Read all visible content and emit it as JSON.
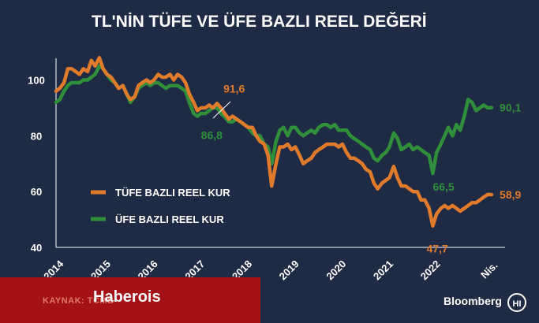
{
  "colors": {
    "background": "#1f2a44",
    "axis": "#ffffff",
    "tufe": "#e07b2c",
    "ufe": "#2f8f3a",
    "banner": "#a41217"
  },
  "chart_data": {
    "type": "line",
    "title": "TL'NİN TÜFE VE ÜFE BAZLI REEL DEĞERİ",
    "xlabel": "",
    "ylabel": "",
    "ylim": [
      40,
      112
    ],
    "xlim": [
      2014.0,
      2023.4
    ],
    "y_ticks": [
      40,
      60,
      80,
      100
    ],
    "x_tick_labels": [
      {
        "x": 2014,
        "label": "2014"
      },
      {
        "x": 2015,
        "label": "2015"
      },
      {
        "x": 2016,
        "label": "2016"
      },
      {
        "x": 2017,
        "label": "2017"
      },
      {
        "x": 2018,
        "label": "2018"
      },
      {
        "x": 2019,
        "label": "2019"
      },
      {
        "x": 2020,
        "label": "2020"
      },
      {
        "x": 2021,
        "label": "2021"
      },
      {
        "x": 2022,
        "label": "2022"
      },
      {
        "x": 2023.25,
        "label": "Nis."
      }
    ],
    "grid": false,
    "legend": "center-left",
    "series": [
      {
        "name": "TÜFE BAZLI REEL KUR",
        "color": "#e07b2c",
        "points": [
          [
            2014.0,
            96
          ],
          [
            2014.08,
            97
          ],
          [
            2014.17,
            99
          ],
          [
            2014.25,
            104
          ],
          [
            2014.33,
            104
          ],
          [
            2014.42,
            103
          ],
          [
            2014.5,
            102
          ],
          [
            2014.58,
            104
          ],
          [
            2014.67,
            103
          ],
          [
            2014.75,
            107
          ],
          [
            2014.83,
            105
          ],
          [
            2014.92,
            108
          ],
          [
            2015.0,
            104
          ],
          [
            2015.08,
            102
          ],
          [
            2015.17,
            101
          ],
          [
            2015.25,
            99
          ],
          [
            2015.33,
            97
          ],
          [
            2015.42,
            98
          ],
          [
            2015.5,
            95
          ],
          [
            2015.58,
            93
          ],
          [
            2015.67,
            94
          ],
          [
            2015.75,
            98
          ],
          [
            2015.83,
            99
          ],
          [
            2015.92,
            100
          ],
          [
            2016.0,
            99
          ],
          [
            2016.08,
            100
          ],
          [
            2016.17,
            102
          ],
          [
            2016.25,
            101
          ],
          [
            2016.33,
            101
          ],
          [
            2016.42,
            102
          ],
          [
            2016.5,
            100
          ],
          [
            2016.58,
            102
          ],
          [
            2016.67,
            101
          ],
          [
            2016.75,
            99
          ],
          [
            2016.83,
            95
          ],
          [
            2016.92,
            92
          ],
          [
            2017.0,
            89
          ],
          [
            2017.08,
            90
          ],
          [
            2017.17,
            90
          ],
          [
            2017.25,
            91
          ],
          [
            2017.33,
            90
          ],
          [
            2017.42,
            91.6
          ],
          [
            2017.5,
            90
          ],
          [
            2017.58,
            88
          ],
          [
            2017.67,
            86
          ],
          [
            2017.75,
            87
          ],
          [
            2017.83,
            86
          ],
          [
            2017.92,
            85
          ],
          [
            2018.0,
            84
          ],
          [
            2018.08,
            83
          ],
          [
            2018.17,
            83
          ],
          [
            2018.25,
            80
          ],
          [
            2018.33,
            78
          ],
          [
            2018.42,
            77
          ],
          [
            2018.5,
            73
          ],
          [
            2018.58,
            62
          ],
          [
            2018.67,
            70
          ],
          [
            2018.75,
            76
          ],
          [
            2018.83,
            76
          ],
          [
            2018.92,
            77
          ],
          [
            2019.0,
            75
          ],
          [
            2019.08,
            76
          ],
          [
            2019.17,
            73
          ],
          [
            2019.25,
            70
          ],
          [
            2019.33,
            71
          ],
          [
            2019.42,
            72
          ],
          [
            2019.5,
            74
          ],
          [
            2019.58,
            75
          ],
          [
            2019.67,
            76
          ],
          [
            2019.75,
            77
          ],
          [
            2019.83,
            77
          ],
          [
            2019.92,
            77
          ],
          [
            2020.0,
            76
          ],
          [
            2020.08,
            77
          ],
          [
            2020.17,
            74
          ],
          [
            2020.25,
            72
          ],
          [
            2020.33,
            72
          ],
          [
            2020.42,
            71
          ],
          [
            2020.5,
            70
          ],
          [
            2020.58,
            68
          ],
          [
            2020.67,
            67
          ],
          [
            2020.75,
            63
          ],
          [
            2020.83,
            61
          ],
          [
            2020.92,
            63
          ],
          [
            2021.0,
            64
          ],
          [
            2021.08,
            65
          ],
          [
            2021.17,
            69
          ],
          [
            2021.25,
            65
          ],
          [
            2021.33,
            62
          ],
          [
            2021.42,
            62
          ],
          [
            2021.5,
            61
          ],
          [
            2021.58,
            60
          ],
          [
            2021.67,
            60
          ],
          [
            2021.75,
            57
          ],
          [
            2021.83,
            57
          ],
          [
            2021.92,
            54
          ],
          [
            2022.0,
            47.7
          ],
          [
            2022.08,
            52
          ],
          [
            2022.17,
            54
          ],
          [
            2022.25,
            55
          ],
          [
            2022.33,
            54
          ],
          [
            2022.42,
            55
          ],
          [
            2022.5,
            54
          ],
          [
            2022.58,
            53
          ],
          [
            2022.67,
            54
          ],
          [
            2022.75,
            55
          ],
          [
            2022.83,
            56
          ],
          [
            2022.92,
            56
          ],
          [
            2023.0,
            57
          ],
          [
            2023.08,
            58
          ],
          [
            2023.17,
            59
          ],
          [
            2023.25,
            58.9
          ]
        ],
        "annotations": [
          {
            "x": 2017.42,
            "y": 91.6,
            "label": "91,6"
          },
          {
            "x": 2022.0,
            "y": 47.7,
            "label": "47,7"
          },
          {
            "x": 2023.25,
            "y": 58.9,
            "label": "58,9"
          }
        ]
      },
      {
        "name": "ÜFE BAZLI REEL KUR",
        "color": "#2f8f3a",
        "points": [
          [
            2014.0,
            92
          ],
          [
            2014.08,
            93
          ],
          [
            2014.17,
            96
          ],
          [
            2014.25,
            98
          ],
          [
            2014.33,
            99
          ],
          [
            2014.42,
            99
          ],
          [
            2014.5,
            99
          ],
          [
            2014.58,
            100
          ],
          [
            2014.67,
            100
          ],
          [
            2014.75,
            101
          ],
          [
            2014.83,
            102
          ],
          [
            2014.92,
            105
          ],
          [
            2015.0,
            104
          ],
          [
            2015.08,
            102
          ],
          [
            2015.17,
            100
          ],
          [
            2015.25,
            99
          ],
          [
            2015.33,
            97
          ],
          [
            2015.42,
            98
          ],
          [
            2015.5,
            95
          ],
          [
            2015.58,
            92
          ],
          [
            2015.67,
            94
          ],
          [
            2015.75,
            97
          ],
          [
            2015.83,
            98
          ],
          [
            2015.92,
            99
          ],
          [
            2016.0,
            98
          ],
          [
            2016.08,
            99
          ],
          [
            2016.17,
            99
          ],
          [
            2016.25,
            98
          ],
          [
            2016.33,
            97
          ],
          [
            2016.42,
            98
          ],
          [
            2016.5,
            98
          ],
          [
            2016.58,
            98
          ],
          [
            2016.67,
            97
          ],
          [
            2016.75,
            96
          ],
          [
            2016.83,
            92
          ],
          [
            2016.92,
            88
          ],
          [
            2017.0,
            87
          ],
          [
            2017.08,
            88
          ],
          [
            2017.17,
            88
          ],
          [
            2017.25,
            89
          ],
          [
            2017.33,
            90
          ],
          [
            2017.42,
            90
          ],
          [
            2017.5,
            88
          ],
          [
            2017.58,
            86.8
          ],
          [
            2017.67,
            85
          ],
          [
            2017.75,
            85
          ],
          [
            2017.83,
            86
          ],
          [
            2017.92,
            85
          ],
          [
            2018.0,
            84
          ],
          [
            2018.08,
            83
          ],
          [
            2018.17,
            81
          ],
          [
            2018.25,
            80
          ],
          [
            2018.33,
            80
          ],
          [
            2018.42,
            77
          ],
          [
            2018.5,
            76
          ],
          [
            2018.58,
            70
          ],
          [
            2018.67,
            78
          ],
          [
            2018.75,
            82
          ],
          [
            2018.83,
            83
          ],
          [
            2018.92,
            80
          ],
          [
            2019.0,
            83
          ],
          [
            2019.08,
            83
          ],
          [
            2019.17,
            81
          ],
          [
            2019.25,
            80
          ],
          [
            2019.33,
            81
          ],
          [
            2019.42,
            82
          ],
          [
            2019.5,
            81
          ],
          [
            2019.58,
            83
          ],
          [
            2019.67,
            84
          ],
          [
            2019.75,
            84
          ],
          [
            2019.83,
            83
          ],
          [
            2019.92,
            84
          ],
          [
            2020.0,
            82
          ],
          [
            2020.08,
            82
          ],
          [
            2020.17,
            82
          ],
          [
            2020.25,
            80
          ],
          [
            2020.33,
            79
          ],
          [
            2020.42,
            78
          ],
          [
            2020.5,
            77
          ],
          [
            2020.58,
            76
          ],
          [
            2020.67,
            75
          ],
          [
            2020.75,
            72
          ],
          [
            2020.83,
            71
          ],
          [
            2020.92,
            73
          ],
          [
            2021.0,
            74
          ],
          [
            2021.08,
            76
          ],
          [
            2021.17,
            81
          ],
          [
            2021.25,
            79
          ],
          [
            2021.33,
            75
          ],
          [
            2021.42,
            76
          ],
          [
            2021.5,
            77
          ],
          [
            2021.58,
            75
          ],
          [
            2021.67,
            76
          ],
          [
            2021.75,
            75
          ],
          [
            2021.83,
            74
          ],
          [
            2021.92,
            73
          ],
          [
            2022.0,
            66.5
          ],
          [
            2022.08,
            74
          ],
          [
            2022.17,
            77
          ],
          [
            2022.25,
            80
          ],
          [
            2022.33,
            83
          ],
          [
            2022.42,
            80
          ],
          [
            2022.5,
            84
          ],
          [
            2022.58,
            82
          ],
          [
            2022.67,
            87
          ],
          [
            2022.75,
            93
          ],
          [
            2022.83,
            92
          ],
          [
            2022.92,
            89
          ],
          [
            2023.0,
            90
          ],
          [
            2023.08,
            91
          ],
          [
            2023.17,
            90
          ],
          [
            2023.25,
            90.1
          ]
        ],
        "annotations": [
          {
            "x": 2017.58,
            "y": 86.8,
            "label": "86,8"
          },
          {
            "x": 2022.0,
            "y": 66.5,
            "label": "66,5"
          },
          {
            "x": 2023.25,
            "y": 90.1,
            "label": "90,1"
          }
        ]
      }
    ]
  },
  "footer": {
    "source_text": "KAYNAK: TCMB",
    "publisher": "Haberois",
    "provider": "Bloomberg",
    "provider_logo_text": "HI"
  }
}
